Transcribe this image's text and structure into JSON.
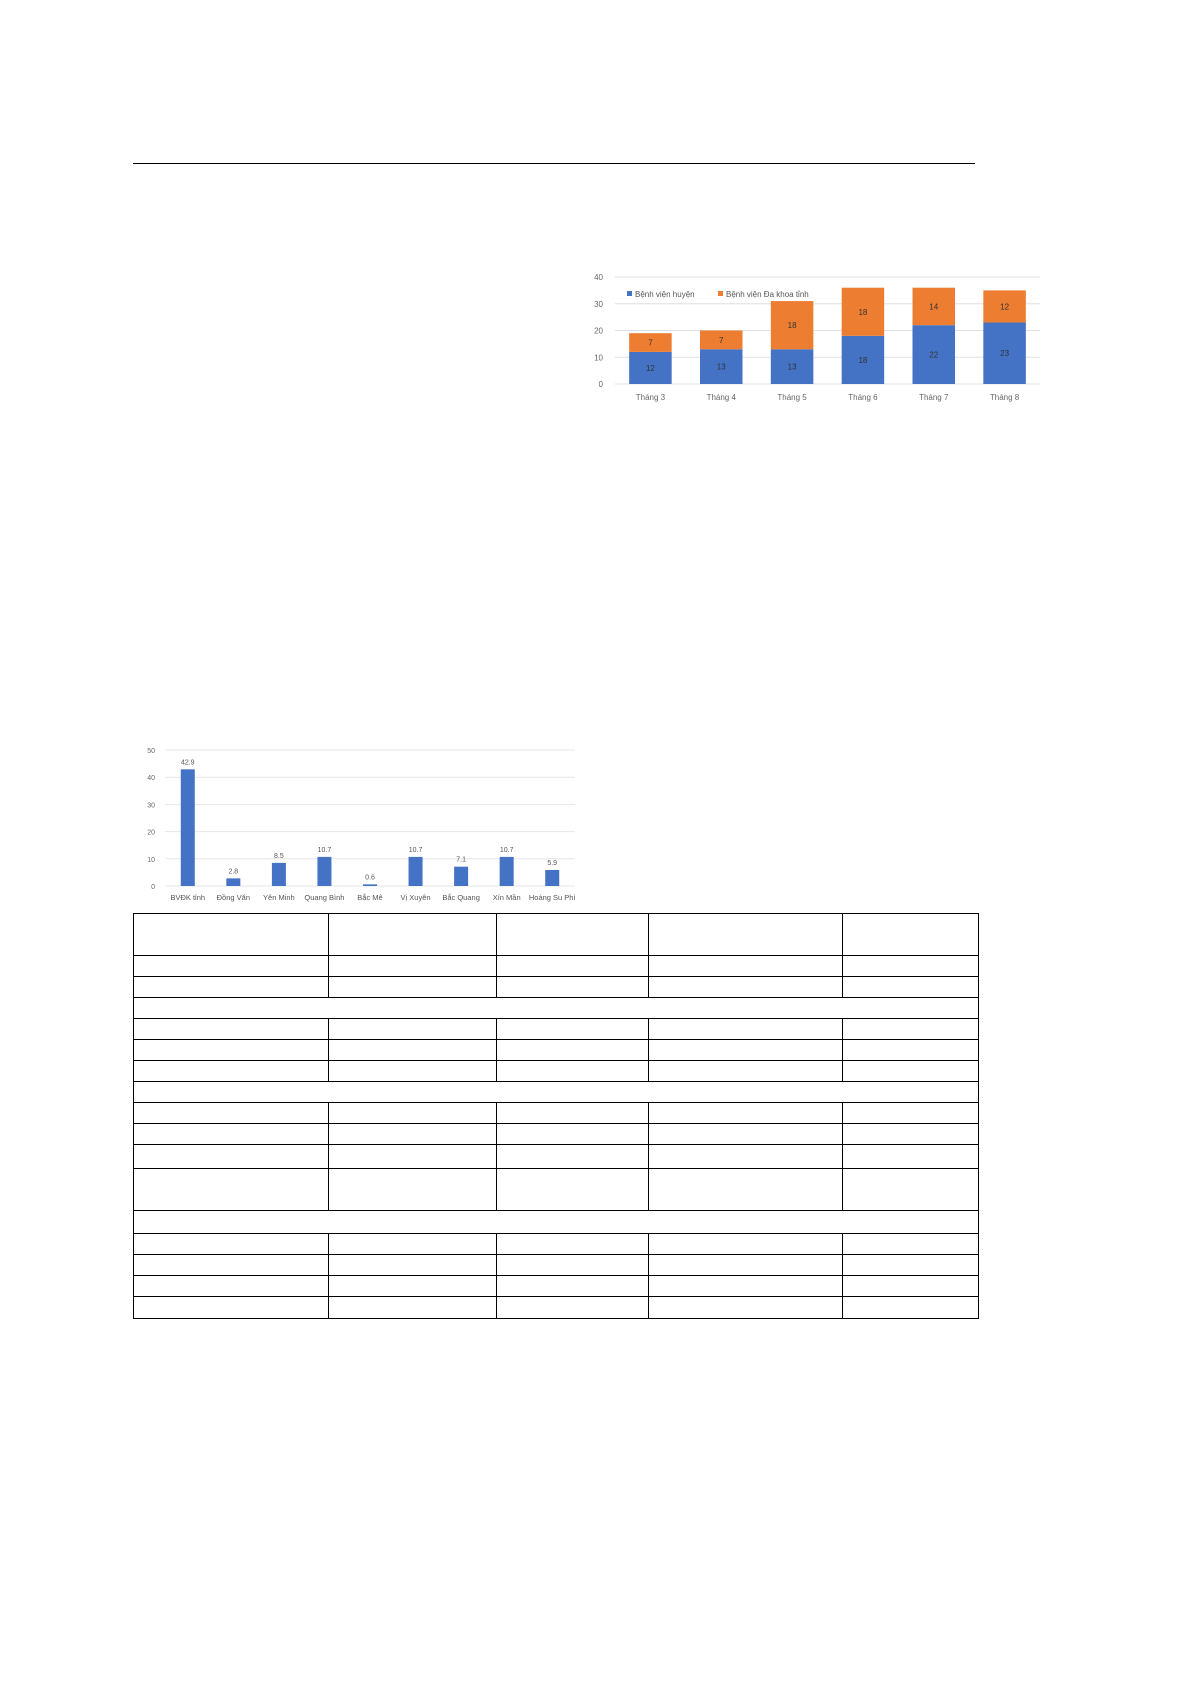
{
  "chart_data": [
    {
      "type": "bar",
      "stacked": true,
      "categories": [
        "Tháng 3",
        "Tháng 4",
        "Tháng 5",
        "Tháng 6",
        "Tháng 7",
        "Tháng 8"
      ],
      "series": [
        {
          "name": "Bệnh viện huyện",
          "color": "#4472c4",
          "values": [
            12,
            13,
            13,
            18,
            22,
            23
          ]
        },
        {
          "name": "Bệnh viện Đa khoa tỉnh",
          "color": "#ed7d31",
          "values": [
            7,
            7,
            18,
            18,
            14,
            12
          ]
        }
      ],
      "ylim": [
        0,
        40
      ],
      "yticks": [
        0,
        10,
        20,
        30,
        40
      ],
      "grid": true,
      "legend": "top-left",
      "data_labels": true
    },
    {
      "type": "bar",
      "categories": [
        "BVĐK tỉnh",
        "Đồng Văn",
        "Yên Minh",
        "Quang Bình",
        "Bắc Mê",
        "Vị Xuyên",
        "Bắc Quang",
        "Xín Mần",
        "Hoàng Su Phì"
      ],
      "values": [
        42.9,
        2.8,
        8.5,
        10.7,
        0.6,
        10.7,
        7.1,
        10.7,
        5.9
      ],
      "color": "#4472c4",
      "ylim": [
        0,
        50
      ],
      "yticks": [
        0,
        10,
        20,
        30,
        40,
        50
      ],
      "grid": true,
      "data_labels": true
    }
  ],
  "table": {
    "columns": 5,
    "rows": 15
  }
}
